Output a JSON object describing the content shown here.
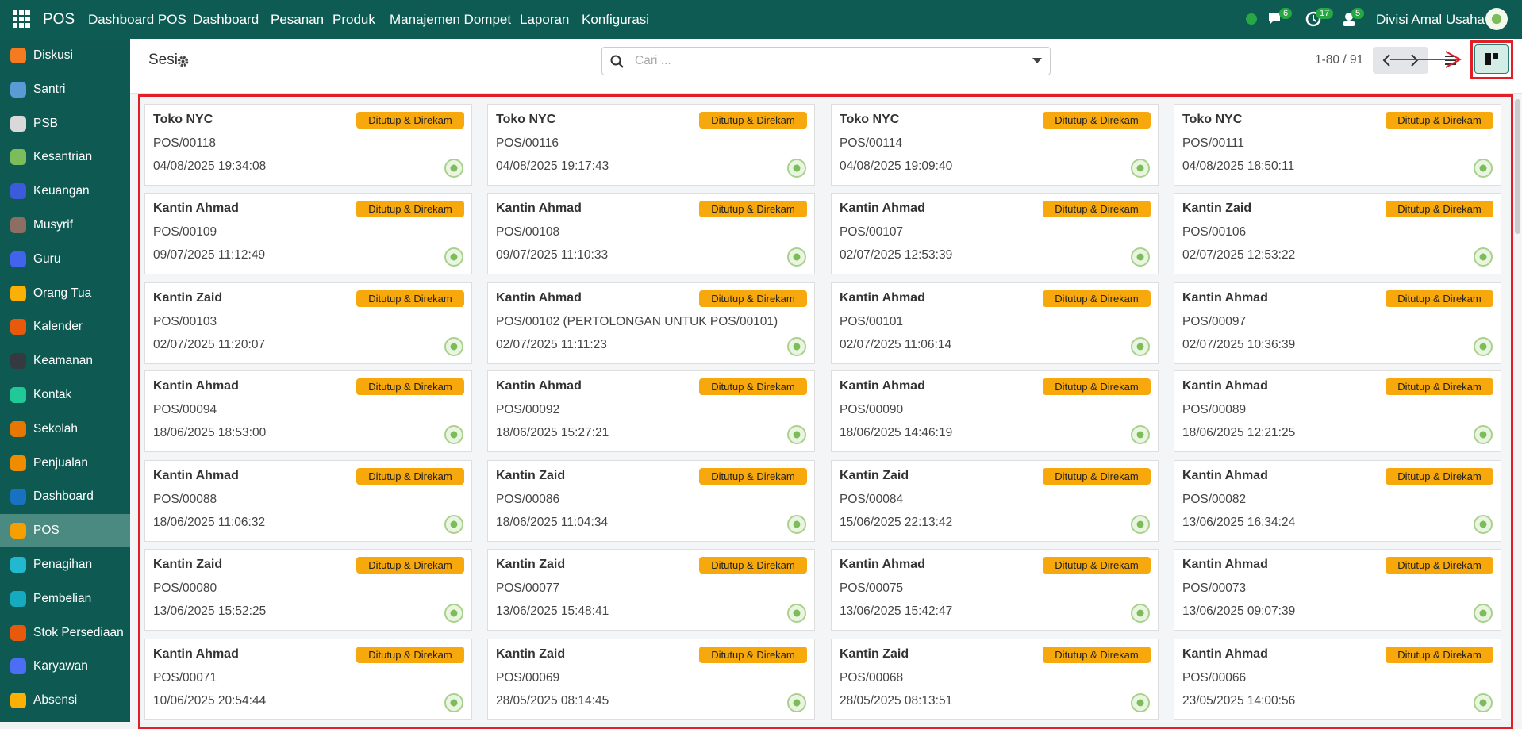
{
  "navbar": {
    "app": "POS",
    "menu": [
      "Dashboard POS",
      "Dashboard",
      "Pesanan",
      "Produk",
      "Manajemen Dompet",
      "Laporan",
      "Konfigurasi"
    ],
    "badges": [
      "6",
      "17",
      "5"
    ],
    "user": "Divisi Amal Usaha"
  },
  "sidebar": [
    {
      "label": "Diskusi",
      "color": "#f47b20"
    },
    {
      "label": "Santri",
      "color": "#5b9bd5"
    },
    {
      "label": "PSB",
      "color": "#d9d9d9"
    },
    {
      "label": "Kesantrian",
      "color": "#7cbc5a"
    },
    {
      "label": "Keuangan",
      "color": "#3b5bdb"
    },
    {
      "label": "Musyrif",
      "color": "#8d6e63"
    },
    {
      "label": "Guru",
      "color": "#4263eb"
    },
    {
      "label": "Orang Tua",
      "color": "#fab005"
    },
    {
      "label": "Kalender",
      "color": "#e8590c"
    },
    {
      "label": "Keamanan",
      "color": "#343a40"
    },
    {
      "label": "Kontak",
      "color": "#20c997"
    },
    {
      "label": "Sekolah",
      "color": "#e67700"
    },
    {
      "label": "Penjualan",
      "color": "#f08c00"
    },
    {
      "label": "Dashboard",
      "color": "#1971c2"
    },
    {
      "label": "POS",
      "color": "#f59f00",
      "active": true
    },
    {
      "label": "Penagihan",
      "color": "#22b8cf"
    },
    {
      "label": "Pembelian",
      "color": "#15aabf"
    },
    {
      "label": "Stok Persediaan",
      "color": "#e8590c"
    },
    {
      "label": "Karyawan",
      "color": "#4c6ef5"
    },
    {
      "label": "Absensi",
      "color": "#fab005"
    }
  ],
  "control": {
    "title": "Sesi",
    "search_placeholder": "Cari ...",
    "pager": "1-80 / 91"
  },
  "cards": [
    {
      "name": "Toko NYC",
      "code": "POS/00118",
      "date": "04/08/2025 19:34:08",
      "status": "Ditutup & Direkam"
    },
    {
      "name": "Toko NYC",
      "code": "POS/00116",
      "date": "04/08/2025 19:17:43",
      "status": "Ditutup & Direkam"
    },
    {
      "name": "Toko NYC",
      "code": "POS/00114",
      "date": "04/08/2025 19:09:40",
      "status": "Ditutup & Direkam"
    },
    {
      "name": "Toko NYC",
      "code": "POS/00111",
      "date": "04/08/2025 18:50:11",
      "status": "Ditutup & Direkam"
    },
    {
      "name": "Kantin Ahmad",
      "code": "POS/00109",
      "date": "09/07/2025 11:12:49",
      "status": "Ditutup & Direkam"
    },
    {
      "name": "Kantin Ahmad",
      "code": "POS/00108",
      "date": "09/07/2025 11:10:33",
      "status": "Ditutup & Direkam"
    },
    {
      "name": "Kantin Ahmad",
      "code": "POS/00107",
      "date": "02/07/2025 12:53:39",
      "status": "Ditutup & Direkam"
    },
    {
      "name": "Kantin Zaid",
      "code": "POS/00106",
      "date": "02/07/2025 12:53:22",
      "status": "Ditutup & Direkam"
    },
    {
      "name": "Kantin Zaid",
      "code": "POS/00103",
      "date": "02/07/2025 11:20:07",
      "status": "Ditutup & Direkam"
    },
    {
      "name": "Kantin Ahmad",
      "code": "POS/00102 (PERTOLONGAN UNTUK POS/00101)",
      "date": "02/07/2025 11:11:23",
      "status": "Ditutup & Direkam"
    },
    {
      "name": "Kantin Ahmad",
      "code": "POS/00101",
      "date": "02/07/2025 11:06:14",
      "status": "Ditutup & Direkam"
    },
    {
      "name": "Kantin Ahmad",
      "code": "POS/00097",
      "date": "02/07/2025 10:36:39",
      "status": "Ditutup & Direkam"
    },
    {
      "name": "Kantin Ahmad",
      "code": "POS/00094",
      "date": "18/06/2025 18:53:00",
      "status": "Ditutup & Direkam"
    },
    {
      "name": "Kantin Ahmad",
      "code": "POS/00092",
      "date": "18/06/2025 15:27:21",
      "status": "Ditutup & Direkam"
    },
    {
      "name": "Kantin Ahmad",
      "code": "POS/00090",
      "date": "18/06/2025 14:46:19",
      "status": "Ditutup & Direkam"
    },
    {
      "name": "Kantin Ahmad",
      "code": "POS/00089",
      "date": "18/06/2025 12:21:25",
      "status": "Ditutup & Direkam"
    },
    {
      "name": "Kantin Ahmad",
      "code": "POS/00088",
      "date": "18/06/2025 11:06:32",
      "status": "Ditutup & Direkam"
    },
    {
      "name": "Kantin Zaid",
      "code": "POS/00086",
      "date": "18/06/2025 11:04:34",
      "status": "Ditutup & Direkam"
    },
    {
      "name": "Kantin Zaid",
      "code": "POS/00084",
      "date": "15/06/2025 22:13:42",
      "status": "Ditutup & Direkam"
    },
    {
      "name": "Kantin Ahmad",
      "code": "POS/00082",
      "date": "13/06/2025 16:34:24",
      "status": "Ditutup & Direkam"
    },
    {
      "name": "Kantin Zaid",
      "code": "POS/00080",
      "date": "13/06/2025 15:52:25",
      "status": "Ditutup & Direkam"
    },
    {
      "name": "Kantin Zaid",
      "code": "POS/00077",
      "date": "13/06/2025 15:48:41",
      "status": "Ditutup & Direkam"
    },
    {
      "name": "Kantin Ahmad",
      "code": "POS/00075",
      "date": "13/06/2025 15:42:47",
      "status": "Ditutup & Direkam"
    },
    {
      "name": "Kantin Ahmad",
      "code": "POS/00073",
      "date": "13/06/2025 09:07:39",
      "status": "Ditutup & Direkam"
    },
    {
      "name": "Kantin Ahmad",
      "code": "POS/00071",
      "date": "10/06/2025 20:54:44",
      "status": "Ditutup & Direkam"
    },
    {
      "name": "Kantin Zaid",
      "code": "POS/00069",
      "date": "28/05/2025 08:14:45",
      "status": "Ditutup & Direkam"
    },
    {
      "name": "Kantin Zaid",
      "code": "POS/00068",
      "date": "28/05/2025 08:13:51",
      "status": "Ditutup & Direkam"
    },
    {
      "name": "Kantin Ahmad",
      "code": "POS/00066",
      "date": "23/05/2025 14:00:56",
      "status": "Ditutup & Direkam"
    }
  ]
}
